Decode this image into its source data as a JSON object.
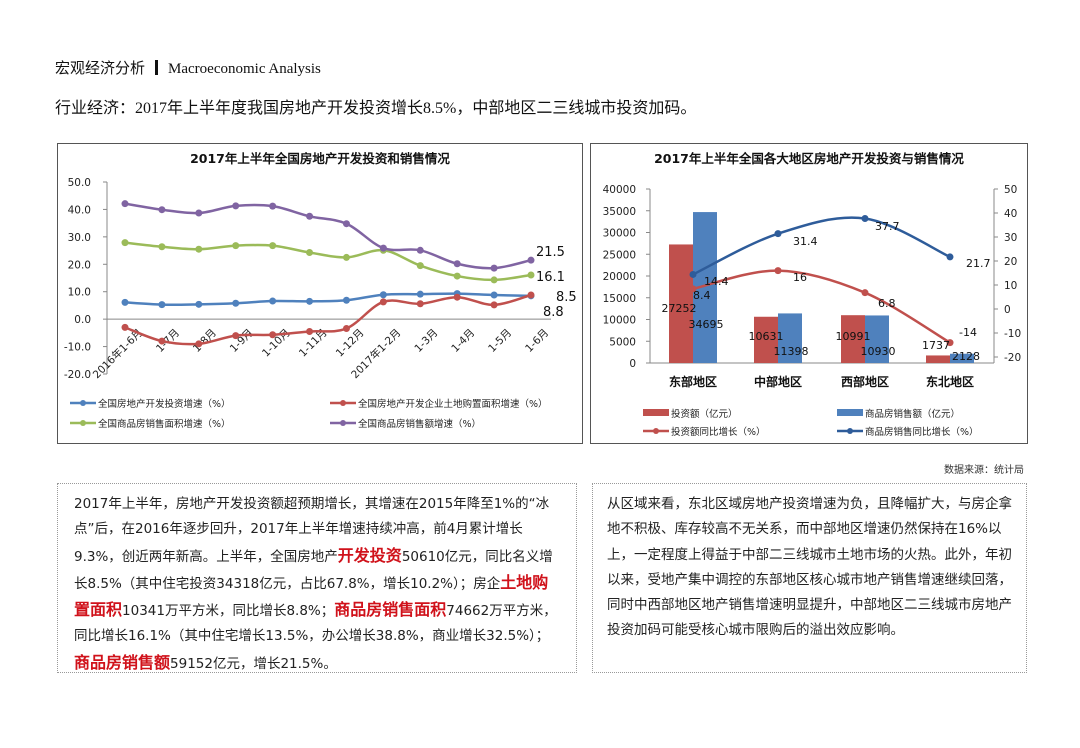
{
  "header": {
    "section_cn": "宏观经济分析",
    "section_en": "Macroeconomic Analysis"
  },
  "subtitle": "行业经济：2017年上半年度我国房地产开发投资增长8.5%，中部地区二三线城市投资加码。",
  "source": "数据来源：统计局",
  "chart_data": [
    {
      "type": "line",
      "title": "2017年上半年全国房地产开发投资和销售情况",
      "categories": [
        "2016年1-6月",
        "1-7月",
        "1-8月",
        "1-9月",
        "1-10月",
        "1-11月",
        "1-12月",
        "2017年1-2月",
        "1-3月",
        "1-4月",
        "1-5月",
        "1-6月"
      ],
      "ylim": [
        -20,
        50
      ],
      "yticks": [
        "50.0",
        "40.0",
        "30.0",
        "20.0",
        "10.0",
        "0.0",
        "-10.0",
        "-20.0"
      ],
      "legend_position": "bottom",
      "grid": false,
      "series": [
        {
          "name": "全国房地产开发投资增速（%）",
          "color": "#4f81bd",
          "values": [
            6.1,
            5.3,
            5.4,
            5.8,
            6.6,
            6.5,
            6.9,
            8.9,
            9.1,
            9.3,
            8.8,
            8.5
          ],
          "end_label": "8.5"
        },
        {
          "name": "全国房地产开发企业土地购置面积增速（%）",
          "color": "#c0504d",
          "values": [
            -3.0,
            -8.0,
            -9.0,
            -6.0,
            -5.7,
            -4.5,
            -3.4,
            6.3,
            5.6,
            8.0,
            5.2,
            8.8
          ],
          "end_label": "8.8"
        },
        {
          "name": "全国商品房销售面积增速（%）",
          "color": "#9bbb59",
          "values": [
            27.9,
            26.4,
            25.5,
            26.8,
            26.8,
            24.3,
            22.5,
            25.1,
            19.5,
            15.7,
            14.3,
            16.1
          ],
          "end_label": "16.1"
        },
        {
          "name": "全国商品房销售额增速（%）",
          "color": "#8064a2",
          "values": [
            42.1,
            39.9,
            38.7,
            41.3,
            41.2,
            37.5,
            34.8,
            25.9,
            25.1,
            20.2,
            18.6,
            21.5
          ],
          "end_label": "21.5"
        }
      ]
    },
    {
      "type": "bar+line",
      "title": "2017年上半年全国各大地区房地产开发投资与销售情况",
      "categories": [
        "东部地区",
        "中部地区",
        "西部地区",
        "东北地区"
      ],
      "ylim": [
        0,
        40000
      ],
      "yticks": [
        "40000",
        "35000",
        "30000",
        "25000",
        "20000",
        "15000",
        "10000",
        "5000",
        "0"
      ],
      "y2lim": [
        -20,
        50
      ],
      "y2ticks": [
        "50",
        "40",
        "30",
        "20",
        "10",
        "0",
        "-10",
        "-20"
      ],
      "legend_position": "bottom",
      "bars": [
        {
          "name": "投资额（亿元）",
          "color": "#c0504d",
          "values": [
            27252,
            10631,
            10991,
            1737
          ]
        },
        {
          "name": "商品房销售额（亿元）",
          "color": "#4f81bd",
          "values": [
            34695,
            11398,
            10930,
            2128
          ]
        }
      ],
      "lines": [
        {
          "name": "投资额同比增长（%）",
          "color": "#c0504d",
          "values": [
            8.4,
            16,
            6.8,
            -14
          ]
        },
        {
          "name": "商品房销售同比增长（%）",
          "color": "#2e5c9a",
          "values": [
            14.4,
            31.4,
            37.7,
            21.7
          ]
        }
      ]
    }
  ],
  "left_text": [
    {
      "t": "2017年上半年，房地产开发投资额超预期增长，其增速在2015年降至1%的“冰点”后，在2016年逐步回升，2017年上半年增速持续冲高，前4月累计增长9.3%，创近两年新高。上半年，全国房地产",
      "h": false
    },
    {
      "t": "开发投资",
      "h": true
    },
    {
      "t": "50610亿元，同比名义增长8.5%（其中住宅投资34318亿元，占比67.8%，增长10.2%）；房企",
      "h": false
    },
    {
      "t": "土地购置面积",
      "h": true
    },
    {
      "t": "10341万平方米，同比增长8.8%；",
      "h": false
    },
    {
      "t": "商品房销售面积",
      "h": true
    },
    {
      "t": "74662万平方米，同比增长16.1%（其中住宅增长13.5%，办公增长38.8%，商业增长32.5%）；",
      "h": false
    },
    {
      "t": "商品房销售额",
      "h": true
    },
    {
      "t": "59152亿元，增长21.5%。",
      "h": false
    }
  ],
  "right_text": "从区域来看，东北区域房地产投资增速为负，且降幅扩大，与房企拿地不积极、库存较高不无关系，而中部地区增速仍然保持在16%以上，一定程度上得益于中部二三线城市土地市场的火热。此外，年初以来，受地产集中调控的东部地区核心城市地产销售增速继续回落，同时中西部地区地产销售增速明显提升，中部地区二三线城市房地产投资加码可能受核心城市限购后的溢出效应影响。"
}
